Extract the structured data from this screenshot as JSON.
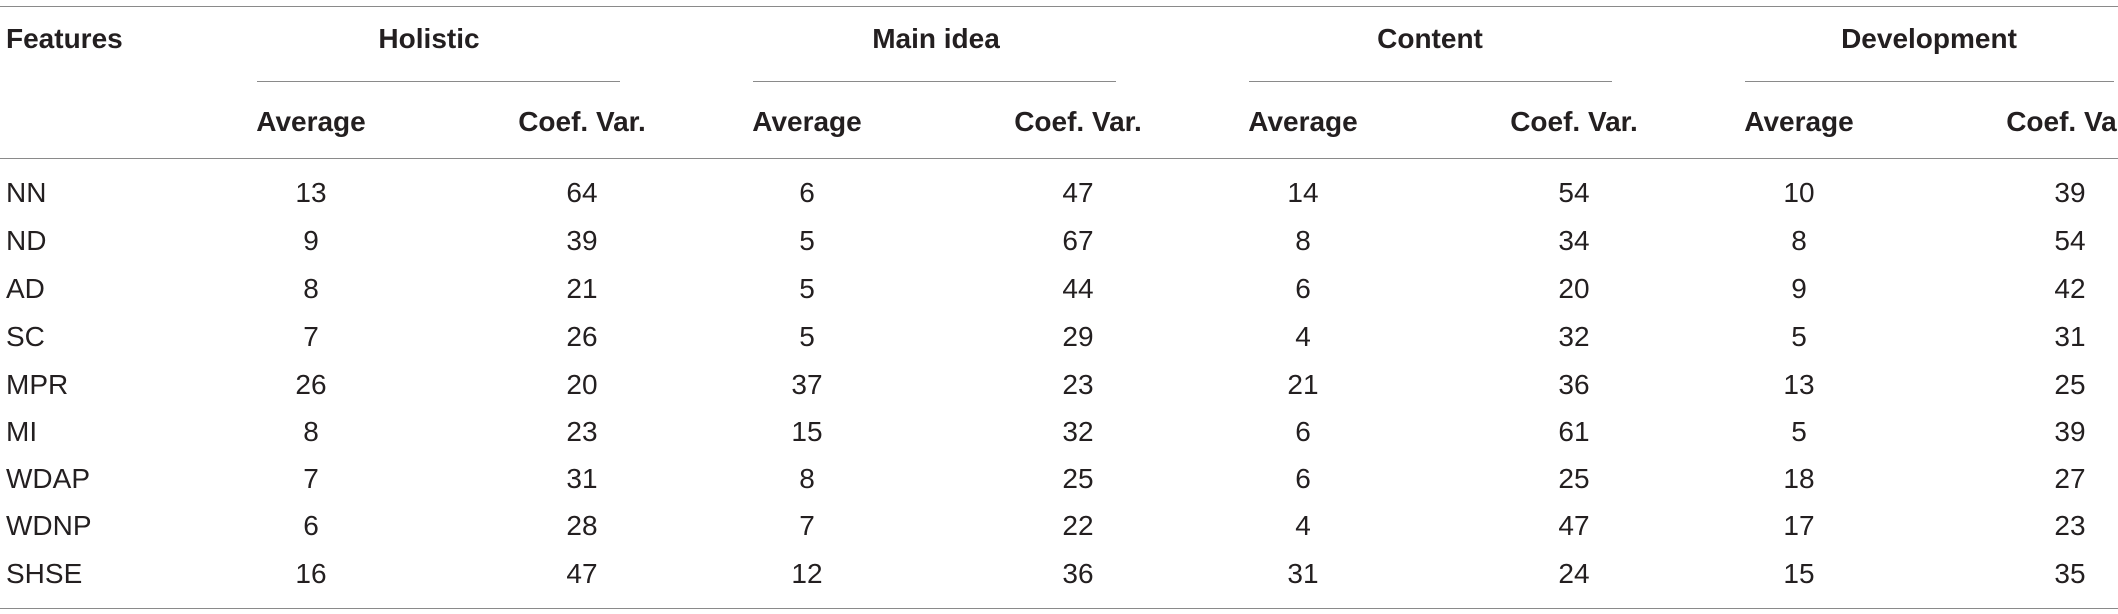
{
  "table": {
    "features_label": "Features",
    "groups": [
      {
        "label": "Holistic",
        "sub": [
          "Average",
          "Coef. Var."
        ]
      },
      {
        "label": "Main idea",
        "sub": [
          "Average",
          "Coef. Var."
        ]
      },
      {
        "label": "Content",
        "sub": [
          "Average",
          "Coef. Var."
        ]
      },
      {
        "label": "Development",
        "sub": [
          "Average",
          "Coef. Var."
        ]
      }
    ],
    "rows": [
      {
        "feature": "NN",
        "values": [
          "13",
          "64",
          "6",
          "47",
          "14",
          "54",
          "10",
          "39"
        ]
      },
      {
        "feature": "ND",
        "values": [
          "9",
          "39",
          "5",
          "67",
          "8",
          "34",
          "8",
          "54"
        ]
      },
      {
        "feature": "AD",
        "values": [
          "8",
          "21",
          "5",
          "44",
          "6",
          "20",
          "9",
          "42"
        ]
      },
      {
        "feature": "SC",
        "values": [
          "7",
          "26",
          "5",
          "29",
          "4",
          "32",
          "5",
          "31"
        ]
      },
      {
        "feature": "MPR",
        "values": [
          "26",
          "20",
          "37",
          "23",
          "21",
          "36",
          "13",
          "25"
        ]
      },
      {
        "feature": "MI",
        "values": [
          "8",
          "23",
          "15",
          "32",
          "6",
          "61",
          "5",
          "39"
        ]
      },
      {
        "feature": "WDAP",
        "values": [
          "7",
          "31",
          "8",
          "25",
          "6",
          "25",
          "18",
          "27"
        ]
      },
      {
        "feature": "WDNP",
        "values": [
          "6",
          "28",
          "7",
          "22",
          "4",
          "47",
          "17",
          "23"
        ]
      },
      {
        "feature": "SHSE",
        "values": [
          "16",
          "47",
          "12",
          "36",
          "31",
          "24",
          "15",
          "35"
        ]
      }
    ]
  }
}
